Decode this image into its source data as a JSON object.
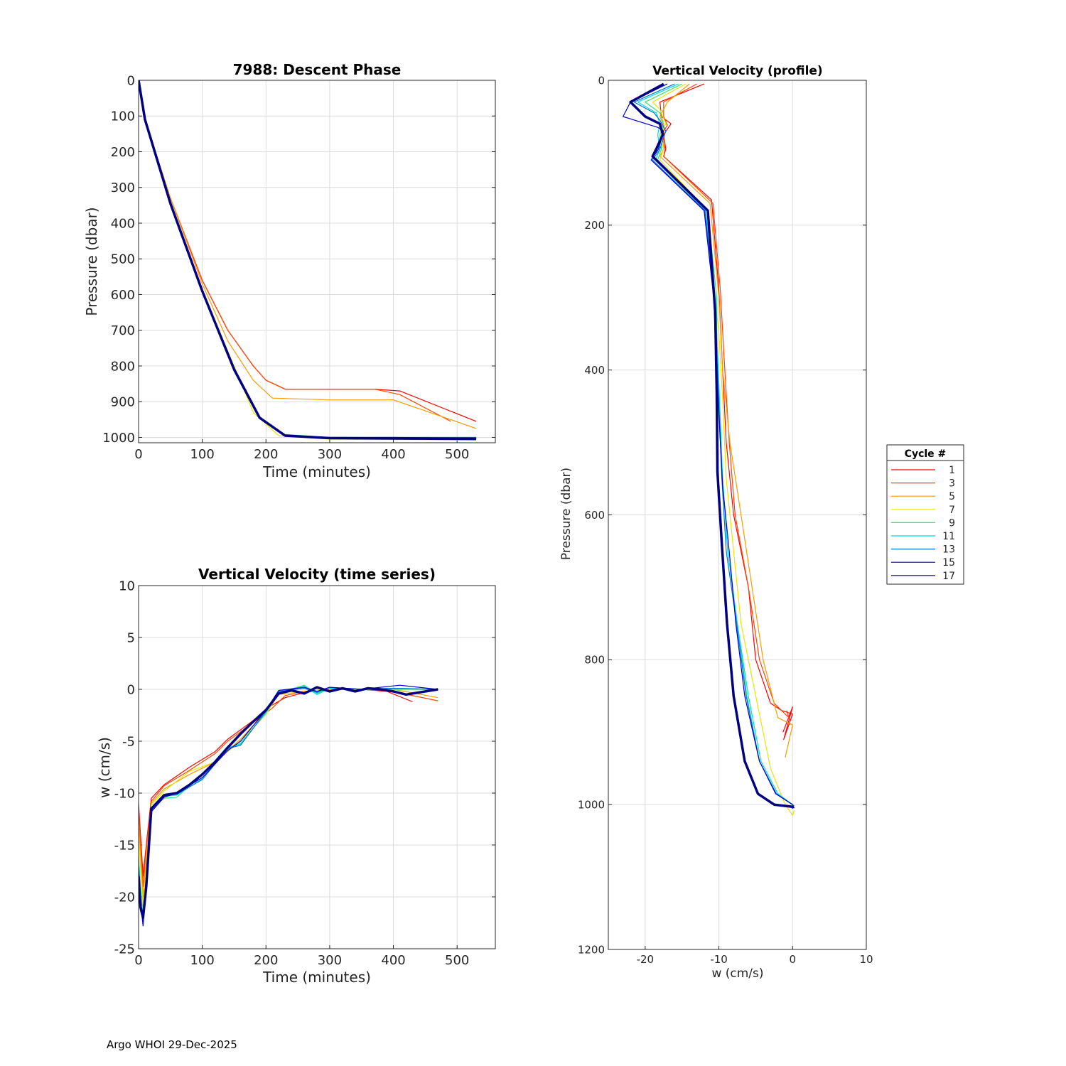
{
  "footer": "Argo WHOI 29-Dec-2025",
  "legend": {
    "title": "Cycle #",
    "entries": [
      {
        "label": "1",
        "color": "#ff0000"
      },
      {
        "label": "3",
        "color": "#ff4500"
      },
      {
        "label": "5",
        "color": "#ff9900"
      },
      {
        "label": "7",
        "color": "#e6e600"
      },
      {
        "label": "9",
        "color": "#33e673"
      },
      {
        "label": "11",
        "color": "#00d9e6"
      },
      {
        "label": "13",
        "color": "#0073d9"
      },
      {
        "label": "15",
        "color": "#0000cc"
      },
      {
        "label": "17",
        "color": "#000080"
      }
    ]
  },
  "chart_data": [
    {
      "type": "line",
      "title": "7988: Descent Phase",
      "xlabel": "Time (minutes)",
      "ylabel": "Pressure (dbar)",
      "xlim": [
        0,
        560
      ],
      "ylim": [
        0,
        1015
      ],
      "y_reversed": true,
      "grid": true,
      "xticks": [
        "0",
        "100",
        "200",
        "300",
        "400",
        "500"
      ],
      "yticks": [
        "0",
        "100",
        "200",
        "300",
        "400",
        "500",
        "600",
        "700",
        "800",
        "900",
        "1000"
      ],
      "series": [
        {
          "name": "1",
          "x": [
            0,
            10,
            50,
            100,
            140,
            180,
            200,
            230,
            300,
            370,
            410,
            530
          ],
          "y": [
            0,
            110,
            330,
            560,
            700,
            800,
            840,
            865,
            865,
            865,
            870,
            955
          ]
        },
        {
          "name": "3",
          "x": [
            0,
            10,
            50,
            100,
            140,
            180,
            200,
            230,
            300,
            370,
            410,
            490
          ],
          "y": [
            0,
            110,
            330,
            560,
            700,
            800,
            840,
            865,
            865,
            865,
            880,
            955
          ]
        },
        {
          "name": "5",
          "x": [
            0,
            10,
            50,
            100,
            140,
            180,
            210,
            300,
            400,
            530
          ],
          "y": [
            0,
            110,
            330,
            570,
            730,
            840,
            890,
            895,
            895,
            975
          ]
        },
        {
          "name": "7",
          "x": [
            0,
            10,
            50,
            100,
            150,
            180,
            220,
            300,
            400,
            530
          ],
          "y": [
            0,
            110,
            345,
            590,
            800,
            930,
            995,
            1005,
            1005,
            1008
          ]
        },
        {
          "name": "9",
          "x": [
            0,
            10,
            50,
            100,
            150,
            190,
            230,
            300,
            400,
            530
          ],
          "y": [
            0,
            110,
            345,
            590,
            810,
            945,
            992,
            1000,
            1000,
            1000
          ]
        },
        {
          "name": "11",
          "x": [
            0,
            10,
            50,
            100,
            150,
            190,
            230,
            300,
            400,
            530
          ],
          "y": [
            0,
            110,
            345,
            590,
            810,
            945,
            995,
            1002,
            1000,
            1003
          ]
        },
        {
          "name": "13",
          "x": [
            0,
            10,
            50,
            100,
            150,
            190,
            230,
            300,
            400,
            530
          ],
          "y": [
            0,
            110,
            345,
            590,
            810,
            945,
            995,
            1000,
            1000,
            1000
          ]
        },
        {
          "name": "15",
          "x": [
            0,
            10,
            50,
            100,
            150,
            190,
            230,
            300,
            400,
            530
          ],
          "y": [
            0,
            110,
            345,
            590,
            810,
            945,
            995,
            1000,
            1000,
            1002
          ]
        },
        {
          "name": "17",
          "x": [
            0,
            10,
            50,
            100,
            150,
            190,
            230,
            300,
            400,
            530
          ],
          "y": [
            0,
            110,
            345,
            590,
            810,
            945,
            995,
            1002,
            1003,
            1004
          ]
        }
      ]
    },
    {
      "type": "line",
      "title": "Vertical Velocity (time series)",
      "xlabel": "Time (minutes)",
      "ylabel": "w (cm/s)",
      "xlim": [
        0,
        560
      ],
      "ylim": [
        -25,
        10
      ],
      "grid": true,
      "xticks": [
        "0",
        "100",
        "200",
        "300",
        "400",
        "500"
      ],
      "yticks": [
        "10",
        "5",
        "0",
        "-5",
        "-10",
        "-15",
        "-20",
        "-25"
      ],
      "series": [
        {
          "name": "1",
          "x": [
            0,
            3,
            7,
            12,
            20,
            40,
            80,
            120,
            140,
            180,
            210,
            230,
            260,
            300,
            350,
            390,
            430
          ],
          "y": [
            -11,
            -14,
            -18,
            -15,
            -10.5,
            -9.2,
            -7.5,
            -6,
            -4.8,
            -3,
            -1.5,
            -0.8,
            -0.3,
            0,
            0,
            -0.2,
            -1.2
          ]
        },
        {
          "name": "3",
          "x": [
            0,
            3,
            7,
            12,
            20,
            40,
            80,
            120,
            140,
            180,
            210,
            230,
            260,
            300,
            350,
            390,
            470
          ],
          "y": [
            -11.5,
            -15,
            -19,
            -15.5,
            -10.8,
            -9.3,
            -7.8,
            -6.2,
            -5,
            -3.2,
            -1.8,
            -0.6,
            -0.2,
            0,
            0,
            -0.1,
            -1.1
          ]
        },
        {
          "name": "5",
          "x": [
            0,
            3,
            7,
            12,
            20,
            40,
            80,
            120,
            160,
            200,
            220,
            260,
            300,
            350,
            400,
            470
          ],
          "y": [
            -13,
            -16,
            -20,
            -16,
            -11,
            -9.6,
            -8.2,
            -7,
            -4.8,
            -2.2,
            -0.5,
            -0.2,
            0,
            0,
            0,
            -0.8
          ]
        },
        {
          "name": "7",
          "x": [
            0,
            3,
            7,
            12,
            20,
            40,
            80,
            120,
            160,
            200,
            220,
            260,
            300,
            350,
            400,
            470
          ],
          "y": [
            -14,
            -17,
            -21,
            -17,
            -11.2,
            -9.8,
            -7.9,
            -7,
            -5,
            -2.4,
            -0.4,
            -0.3,
            0.1,
            0,
            0,
            0
          ]
        },
        {
          "name": "9",
          "x": [
            0,
            3,
            7,
            12,
            20,
            40,
            60,
            100,
            140,
            160,
            200,
            220,
            260,
            280,
            300,
            350,
            400,
            470
          ],
          "y": [
            -16,
            -19,
            -22,
            -18,
            -11.5,
            -10.5,
            -10.4,
            -8.2,
            -5.8,
            -5.2,
            -2.3,
            -0.3,
            0.4,
            -0.4,
            0.1,
            0,
            0,
            0
          ]
        },
        {
          "name": "11",
          "x": [
            0,
            3,
            7,
            12,
            20,
            40,
            60,
            100,
            140,
            160,
            200,
            220,
            260,
            280,
            300,
            350,
            400,
            470
          ],
          "y": [
            -16.5,
            -19.5,
            -22,
            -18.5,
            -11.6,
            -10.3,
            -10.2,
            -8.6,
            -5.6,
            -5.3,
            -2.2,
            -0.3,
            0.3,
            -0.5,
            0.1,
            0,
            0.1,
            0
          ]
        },
        {
          "name": "13",
          "x": [
            0,
            3,
            7,
            12,
            20,
            40,
            60,
            100,
            140,
            160,
            200,
            220,
            260,
            280,
            300,
            350,
            400,
            470
          ],
          "y": [
            -17,
            -20,
            -22.5,
            -19,
            -11.7,
            -10.2,
            -10.1,
            -8.7,
            -5.7,
            -5.4,
            -2.1,
            -0.2,
            0.1,
            -0.3,
            0.2,
            0,
            0.1,
            0
          ]
        },
        {
          "name": "15",
          "x": [
            0,
            3,
            7,
            12,
            20,
            40,
            60,
            100,
            140,
            160,
            200,
            220,
            260,
            280,
            300,
            350,
            410,
            470
          ],
          "y": [
            -17.5,
            -20.5,
            -22.8,
            -19,
            -11.8,
            -10.4,
            -10,
            -8.5,
            -5.9,
            -5,
            -2,
            -0.1,
            0.2,
            -0.2,
            0.2,
            0,
            0.4,
            0
          ]
        },
        {
          "name": "17",
          "x": [
            0,
            3,
            7,
            12,
            20,
            40,
            60,
            80,
            100,
            120,
            140,
            160,
            180,
            200,
            220,
            240,
            260,
            280,
            300,
            320,
            340,
            360,
            380,
            400,
            420,
            470
          ],
          "y": [
            -18,
            -21,
            -22,
            -19,
            -11.5,
            -10.2,
            -10,
            -9.2,
            -8.2,
            -7,
            -5.6,
            -4.3,
            -3.1,
            -2,
            -0.4,
            -0.1,
            -0.4,
            0.2,
            -0.2,
            0.1,
            -0.2,
            0.1,
            0,
            -0.2,
            -0.5,
            0
          ]
        }
      ]
    },
    {
      "type": "line",
      "title": "Vertical Velocity (profile)",
      "xlabel": "w (cm/s)",
      "ylabel": "Pressure (dbar)",
      "xlim": [
        -25,
        10
      ],
      "ylim": [
        0,
        1200
      ],
      "y_reversed": true,
      "grid": true,
      "xticks": [
        "-20",
        "-10",
        "0",
        "10"
      ],
      "yticks": [
        "0",
        "200",
        "400",
        "600",
        "800",
        "1000",
        "1200"
      ],
      "series": [
        {
          "name": "1",
          "x": [
            -12,
            -18,
            -17.8,
            -16.5,
            -17.5,
            -17.2,
            -17.5,
            -11,
            -10,
            -9.5,
            -9,
            -8,
            -6,
            -5,
            -3,
            -1.5,
            0,
            -1.2,
            0,
            -1.3
          ],
          "y": [
            5,
            30,
            50,
            60,
            75,
            95,
            105,
            165,
            290,
            400,
            500,
            600,
            700,
            800,
            860,
            870,
            875,
            910,
            865,
            900
          ]
        },
        {
          "name": "3",
          "x": [
            -13,
            -17.5,
            -17.5,
            -17,
            -17.8,
            -17.3,
            -17.5,
            -10.8,
            -9.8,
            -9.2,
            -8.6,
            -7.8,
            -6,
            -4.5,
            -2.5,
            -0.5,
            -0.8
          ],
          "y": [
            5,
            30,
            50,
            62,
            75,
            95,
            105,
            170,
            290,
            400,
            500,
            600,
            700,
            800,
            860,
            880,
            870
          ]
        },
        {
          "name": "5",
          "x": [
            -14,
            -17,
            -18,
            -17.5,
            -17.5,
            -17.5,
            -18,
            -11.2,
            -10,
            -9.5,
            -8.5,
            -7,
            -5.5,
            -4,
            -2,
            0,
            -1
          ],
          "y": [
            5,
            30,
            50,
            62,
            75,
            95,
            105,
            170,
            300,
            400,
            500,
            600,
            700,
            800,
            880,
            890,
            935
          ]
        },
        {
          "name": "7",
          "x": [
            -14.5,
            -19,
            -18,
            -17.2,
            -18,
            -17.5,
            -18,
            -11.5,
            -10.5,
            -10,
            -9.5,
            -9,
            -8,
            -7,
            -5,
            -3,
            -1,
            0,
            0.2
          ],
          "y": [
            5,
            30,
            40,
            60,
            75,
            95,
            110,
            180,
            300,
            350,
            440,
            550,
            650,
            750,
            850,
            950,
            1000,
            1015,
            1008
          ]
        },
        {
          "name": "9",
          "x": [
            -15,
            -20,
            -18,
            -17.5,
            -18,
            -17.8,
            -18.3,
            -11.5,
            -10.3,
            -10.3,
            -9.5,
            -8.8,
            -7.5,
            -6.2,
            -4.5,
            -2.2,
            0,
            0.1
          ],
          "y": [
            5,
            30,
            45,
            60,
            75,
            95,
            110,
            180,
            300,
            420,
            550,
            650,
            750,
            850,
            940,
            985,
            1000,
            1003
          ]
        },
        {
          "name": "11",
          "x": [
            -15.5,
            -21,
            -18.5,
            -18,
            -18.3,
            -18,
            -18.6,
            -11.8,
            -10.5,
            -10,
            -9.5,
            -8.8,
            -7.5,
            -6,
            -4.3,
            -2,
            0,
            0.1
          ],
          "y": [
            5,
            30,
            45,
            60,
            75,
            95,
            110,
            180,
            300,
            420,
            550,
            650,
            750,
            850,
            940,
            985,
            1000,
            1005
          ]
        },
        {
          "name": "13",
          "x": [
            -16,
            -21.5,
            -18.8,
            -18,
            -17.2,
            -18,
            -19,
            -11.9,
            -10.6,
            -10.1,
            -9.6,
            -9,
            -7.6,
            -6.3,
            -4.5,
            -2.2,
            0,
            0.2
          ],
          "y": [
            5,
            30,
            45,
            55,
            70,
            95,
            110,
            180,
            300,
            420,
            550,
            650,
            750,
            850,
            940,
            985,
            1000,
            1002
          ]
        },
        {
          "name": "15",
          "x": [
            -17,
            -22,
            -23,
            -18.3,
            -17.5,
            -18.2,
            -19.2,
            -12,
            -10.7,
            -10.2,
            -9.5,
            -8.6,
            -7.7,
            -6.5,
            -4.5,
            -2.3,
            0,
            0.2
          ],
          "y": [
            5,
            30,
            50,
            65,
            70,
            95,
            110,
            180,
            300,
            420,
            560,
            650,
            750,
            850,
            940,
            985,
            1000,
            1005
          ]
        },
        {
          "name": "17",
          "x": [
            -17.5,
            -22,
            -20,
            -18,
            -17.6,
            -18.5,
            -19,
            -11.5,
            -10.5,
            -10.3,
            -10.2,
            -9.6,
            -8.9,
            -8,
            -6.5,
            -4.7,
            -2.5,
            0,
            0.1
          ],
          "y": [
            5,
            30,
            50,
            60,
            75,
            95,
            105,
            180,
            320,
            430,
            540,
            640,
            750,
            850,
            940,
            985,
            1000,
            1003,
            1005
          ]
        }
      ]
    }
  ]
}
